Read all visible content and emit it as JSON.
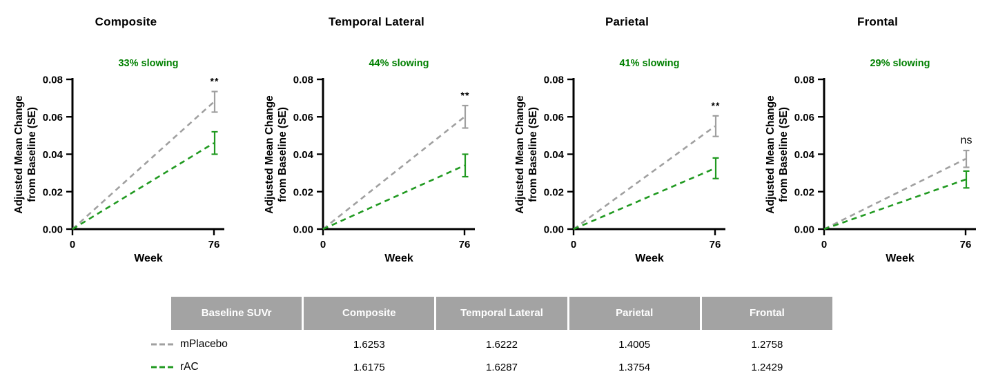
{
  "chart_data": [
    {
      "type": "line",
      "title": "Composite",
      "slowing": "33% slowing",
      "significance": "**",
      "xlabel": "Week",
      "ylabel": "Adjusted Mean Change\nfrom Baseline (SE)",
      "x": [
        0,
        76
      ],
      "xlim": [
        0,
        76
      ],
      "ylim": [
        0,
        0.08
      ],
      "xticks": [
        "0",
        "76"
      ],
      "yticks": [
        "0.00",
        "0.02",
        "0.04",
        "0.06",
        "0.08"
      ],
      "series": [
        {
          "name": "mPlacebo",
          "values": [
            0,
            0.068
          ],
          "se": 0.0055
        },
        {
          "name": "rAC",
          "values": [
            0,
            0.046
          ],
          "se": 0.006
        }
      ]
    },
    {
      "type": "line",
      "title": "Temporal Lateral",
      "slowing": "44% slowing",
      "significance": "**",
      "xlabel": "Week",
      "ylabel": "Adjusted Mean Change\nfrom Baseline (SE)",
      "x": [
        0,
        76
      ],
      "xlim": [
        0,
        76
      ],
      "ylim": [
        0,
        0.08
      ],
      "xticks": [
        "0",
        "76"
      ],
      "yticks": [
        "0.00",
        "0.02",
        "0.04",
        "0.06",
        "0.08"
      ],
      "series": [
        {
          "name": "mPlacebo",
          "values": [
            0,
            0.06
          ],
          "se": 0.006
        },
        {
          "name": "rAC",
          "values": [
            0,
            0.034
          ],
          "se": 0.006
        }
      ]
    },
    {
      "type": "line",
      "title": "Parietal",
      "slowing": "41% slowing",
      "significance": "**",
      "xlabel": "Week",
      "ylabel": "Adjusted Mean Change\nfrom Baseline (SE)",
      "x": [
        0,
        76
      ],
      "xlim": [
        0,
        76
      ],
      "ylim": [
        0,
        0.08
      ],
      "xticks": [
        "0",
        "76"
      ],
      "yticks": [
        "0.00",
        "0.02",
        "0.04",
        "0.06",
        "0.08"
      ],
      "series": [
        {
          "name": "mPlacebo",
          "values": [
            0,
            0.055
          ],
          "se": 0.0055
        },
        {
          "name": "rAC",
          "values": [
            0,
            0.0325
          ],
          "se": 0.0055
        }
      ]
    },
    {
      "type": "line",
      "title": "Frontal",
      "slowing": "29% slowing",
      "significance": "ns",
      "xlabel": "Week",
      "ylabel": "Adjusted Mean Change\nfrom Baseline (SE)",
      "x": [
        0,
        76
      ],
      "xlim": [
        0,
        76
      ],
      "ylim": [
        0,
        0.08
      ],
      "xticks": [
        "0",
        "76"
      ],
      "yticks": [
        "0.00",
        "0.02",
        "0.04",
        "0.06",
        "0.08"
      ],
      "series": [
        {
          "name": "mPlacebo",
          "values": [
            0,
            0.0375
          ],
          "se": 0.0045
        },
        {
          "name": "rAC",
          "values": [
            0,
            0.0265
          ],
          "se": 0.0045
        }
      ]
    }
  ],
  "colors": {
    "placebo": "#a0a0a0",
    "treatment": "#219a21",
    "slowing_text": "#008000",
    "axis": "#000000",
    "table_header_bg": "#a3a3a3",
    "table_header_text": "#ffffff"
  },
  "table": {
    "columns": [
      "Baseline SUVr",
      "Composite",
      "Temporal Lateral",
      "Parietal",
      "Frontal"
    ],
    "rows": [
      {
        "label": "mPlacebo",
        "values": [
          "1.6253",
          "1.6222",
          "1.4005",
          "1.2758"
        ]
      },
      {
        "label": "rAC",
        "values": [
          "1.6175",
          "1.6287",
          "1.3754",
          "1.2429"
        ]
      }
    ]
  }
}
